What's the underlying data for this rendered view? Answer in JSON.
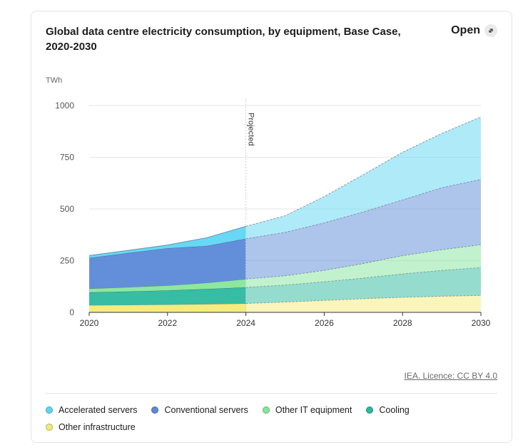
{
  "header": {
    "title": "Global data centre electricity consumption, by equipment, Base Case, 2020-2030",
    "open_label": "Open"
  },
  "footer": {
    "licence": "IEA. Licence: CC BY 4.0"
  },
  "colors": {
    "accelerated": "#5fd6f4",
    "conventional": "#5b89d8",
    "other_it": "#86e69c",
    "cooling": "#2bb99f",
    "infrastructure": "#f3eb78"
  },
  "chart_data": {
    "type": "area",
    "stacked": true,
    "ylabel": "TWh",
    "ylim": [
      0,
      1000
    ],
    "yticks": [
      0,
      250,
      500,
      750,
      1000
    ],
    "xlim": [
      2020,
      2030
    ],
    "xticks": [
      2020,
      2022,
      2024,
      2026,
      2028,
      2030
    ],
    "projection_start": 2024,
    "projection_label": "Projected",
    "grid": true,
    "legend_position": "bottom",
    "x": [
      2020,
      2021,
      2022,
      2023,
      2024,
      2025,
      2026,
      2027,
      2028,
      2029,
      2030
    ],
    "series": [
      {
        "name": "Other infrastructure",
        "color": "#f3eb78",
        "values": [
          35,
          36,
          38,
          40,
          43,
          50,
          58,
          66,
          73,
          78,
          82
        ]
      },
      {
        "name": "Cooling",
        "color": "#2bb99f",
        "values": [
          62,
          65,
          68,
          73,
          78,
          82,
          90,
          100,
          113,
          125,
          135
        ]
      },
      {
        "name": "Other IT equipment",
        "color": "#86e69c",
        "values": [
          18,
          21,
          24,
          30,
          40,
          45,
          55,
          70,
          88,
          100,
          110
        ]
      },
      {
        "name": "Conventional servers",
        "color": "#5b89d8",
        "values": [
          148,
          165,
          180,
          178,
          195,
          210,
          230,
          250,
          270,
          300,
          316
        ]
      },
      {
        "name": "Accelerated servers",
        "color": "#5fd6f4",
        "values": [
          12,
          13,
          16,
          40,
          60,
          80,
          127,
          180,
          230,
          262,
          302
        ]
      }
    ]
  },
  "legend": [
    {
      "label": "Accelerated servers",
      "color": "#5fd6f4"
    },
    {
      "label": "Conventional servers",
      "color": "#5b89d8"
    },
    {
      "label": "Other IT equipment",
      "color": "#86e69c"
    },
    {
      "label": "Cooling",
      "color": "#2bb99f"
    },
    {
      "label": "Other infrastructure",
      "color": "#f3eb78"
    }
  ]
}
